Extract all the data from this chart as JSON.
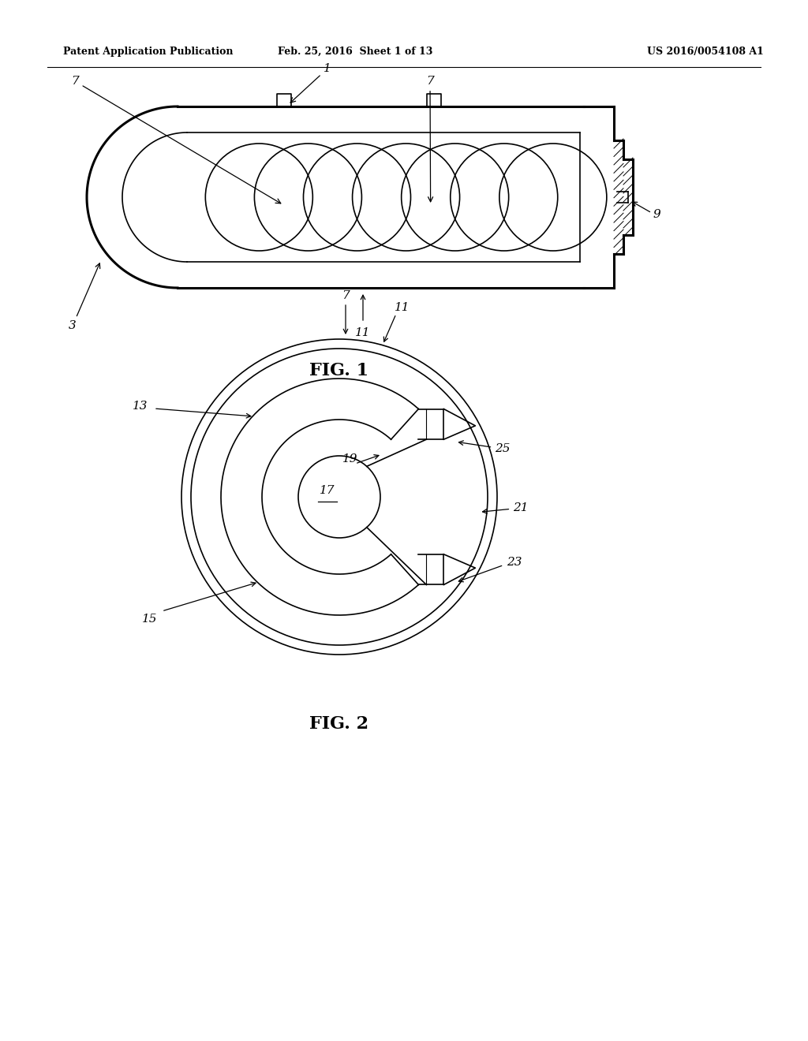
{
  "background_color": "#ffffff",
  "header_left": "Patent Application Publication",
  "header_center": "Feb. 25, 2016  Sheet 1 of 13",
  "header_right": "US 2016/0054108 A1",
  "fig1_label": "FIG. 1",
  "fig2_label": "FIG. 2",
  "line_color": "#000000",
  "linewidth": 1.2,
  "thick_lw": 2.2,
  "annotation_fontsize": 11,
  "fig_label_fontsize": 16,
  "header_fontsize": 9
}
